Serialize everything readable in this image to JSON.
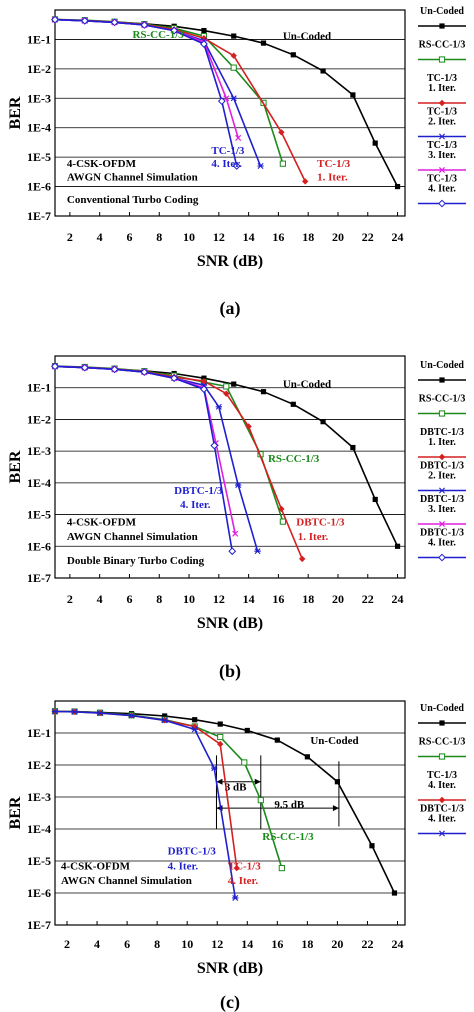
{
  "chart_data": [
    {
      "type": "line",
      "panel_label": "(a)",
      "xlabel": "SNR (dB)",
      "ylabel": "BER",
      "log_y": true,
      "xlim": [
        1,
        24.5
      ],
      "ylim_exp": [
        -7,
        0
      ],
      "x_ticks": [
        2,
        4,
        6,
        8,
        10,
        12,
        14,
        16,
        18,
        20,
        22,
        24
      ],
      "y_ticks": [
        "1E-1",
        "1E-2",
        "1E-3",
        "1E-4",
        "1E-5",
        "1E-6",
        "1E-7"
      ],
      "grid": "horizontal",
      "legend_position": "right",
      "annotations": [
        {
          "text": "Un-Coded",
          "x": 16.3,
          "y": 0.1,
          "color": "#000000"
        },
        {
          "text": "RS-CC-1/3",
          "x": 6.2,
          "y": 0.11,
          "color": "#1a8a1a"
        },
        {
          "text": "TC-1/3",
          "x": 11.5,
          "y": 1.3e-05,
          "color": "#1f1fd0"
        },
        {
          "text": "4. Iter.",
          "x": 11.5,
          "y": 4.6e-06,
          "color": "#1f1fd0"
        },
        {
          "text": "TC-1/3",
          "x": 18.6,
          "y": 4.6e-06,
          "color": "#d42020"
        },
        {
          "text": "1. Iter.",
          "x": 18.6,
          "y": 1.6e-06,
          "color": "#d42020"
        },
        {
          "text": "4-CSK-OFDM",
          "x": 1.8,
          "y": 4.6e-06,
          "color": "#000000"
        },
        {
          "text": "AWGN Channel Simulation",
          "x": 1.8,
          "y": 1.6e-06,
          "color": "#000000"
        },
        {
          "text": "Conventional Turbo Coding",
          "x": 1.8,
          "y": 2.8e-07,
          "color": "#000000"
        }
      ],
      "series": [
        {
          "name": "Un-Coded",
          "color": "#000000",
          "marker": "square-filled",
          "x": [
            1,
            3,
            5,
            7,
            9,
            11,
            13,
            15,
            17,
            19,
            21,
            22.5,
            24
          ],
          "y": [
            0.47,
            0.43,
            0.39,
            0.34,
            0.28,
            0.2,
            0.13,
            0.075,
            0.03,
            0.0085,
            0.0013,
            3e-05,
            1e-06
          ]
        },
        {
          "name": "RS-CC-1/3",
          "color": "#1a8a1a",
          "marker": "square-open",
          "x": [
            1,
            3,
            5,
            7,
            9,
            11,
            13,
            15,
            16.3
          ],
          "y": [
            0.48,
            0.45,
            0.4,
            0.33,
            0.24,
            0.13,
            0.011,
            0.0007,
            6e-06
          ]
        },
        {
          "name": "TC-1/3 1. Iter.",
          "color": "#d42020",
          "marker": "diamond-filled",
          "x": [
            1,
            3,
            5,
            7,
            9,
            11,
            13,
            16.2,
            17.8
          ],
          "y": [
            0.47,
            0.44,
            0.39,
            0.32,
            0.22,
            0.11,
            0.028,
            7e-05,
            1.5e-06
          ]
        },
        {
          "name": "TC-1/3 2. Iter.",
          "color": "#1f1fd0",
          "marker": "star",
          "x": [
            1,
            3,
            5,
            7,
            9,
            11,
            13,
            14.8
          ],
          "y": [
            0.47,
            0.43,
            0.38,
            0.31,
            0.2,
            0.09,
            0.001,
            5e-06
          ]
        },
        {
          "name": "TC-1/3 3. Iter.",
          "color": "#e020e0",
          "marker": "x",
          "x": [
            1,
            3,
            5,
            7,
            9,
            11,
            12.5,
            13.3
          ],
          "y": [
            0.47,
            0.43,
            0.38,
            0.31,
            0.2,
            0.08,
            0.001,
            4.5e-05
          ]
        },
        {
          "name": "TC-1/3 4. Iter.",
          "color": "#1f1fd0",
          "marker": "diamond-open",
          "x": [
            1,
            3,
            5,
            7,
            9,
            11,
            12.2,
            13.2
          ],
          "y": [
            0.47,
            0.43,
            0.38,
            0.31,
            0.2,
            0.07,
            0.0008,
            5e-06
          ]
        }
      ]
    },
    {
      "type": "line",
      "panel_label": "(b)",
      "xlabel": "SNR (dB)",
      "ylabel": "BER",
      "log_y": true,
      "xlim": [
        1,
        24.5
      ],
      "ylim_exp": [
        -7,
        0
      ],
      "x_ticks": [
        2,
        4,
        6,
        8,
        10,
        12,
        14,
        16,
        18,
        20,
        22,
        24
      ],
      "y_ticks": [
        "1E-1",
        "1E-2",
        "1E-3",
        "1E-4",
        "1E-5",
        "1E-6",
        "1E-7"
      ],
      "grid": "horizontal",
      "legend_position": "right",
      "annotations": [
        {
          "text": "Un-Coded",
          "x": 16.3,
          "y": 0.1,
          "color": "#000000"
        },
        {
          "text": "RS-CC-1/3",
          "x": 15.3,
          "y": 0.00045,
          "color": "#1a8a1a"
        },
        {
          "text": "DBTC-1/3",
          "x": 9,
          "y": 4.5e-05,
          "color": "#1f1fd0"
        },
        {
          "text": "4. Iter.",
          "x": 9.4,
          "y": 1.6e-05,
          "color": "#1f1fd0"
        },
        {
          "text": "DBTC-1/3",
          "x": 17.2,
          "y": 4.6e-06,
          "color": "#d42020"
        },
        {
          "text": "1. Iter.",
          "x": 17.3,
          "y": 1.6e-06,
          "color": "#d42020"
        },
        {
          "text": "4-CSK-OFDM",
          "x": 1.8,
          "y": 4.6e-06,
          "color": "#000000"
        },
        {
          "text": "AWGN Channel Simulation",
          "x": 1.8,
          "y": 1.6e-06,
          "color": "#000000"
        },
        {
          "text": "Double Binary Turbo Coding",
          "x": 1.8,
          "y": 2.8e-07,
          "color": "#000000"
        }
      ],
      "series": [
        {
          "name": "Un-Coded",
          "color": "#000000",
          "marker": "square-filled",
          "x": [
            1,
            3,
            5,
            7,
            9,
            11,
            13,
            15,
            17,
            19,
            21,
            22.5,
            24
          ],
          "y": [
            0.47,
            0.43,
            0.39,
            0.34,
            0.28,
            0.2,
            0.13,
            0.075,
            0.03,
            0.0085,
            0.0013,
            3e-05,
            1e-06
          ]
        },
        {
          "name": "RS-CC-1/3",
          "color": "#1a8a1a",
          "marker": "square-open",
          "x": [
            1,
            3,
            5,
            7,
            9,
            11,
            12.5,
            14.8,
            16.3
          ],
          "y": [
            0.48,
            0.45,
            0.4,
            0.33,
            0.24,
            0.15,
            0.11,
            0.0008,
            6e-06
          ]
        },
        {
          "name": "DBTC-1/3 1. Iter.",
          "color": "#d42020",
          "marker": "diamond-filled",
          "x": [
            1,
            3,
            5,
            7,
            9,
            11,
            12.5,
            14,
            16.2,
            17.6
          ],
          "y": [
            0.47,
            0.44,
            0.39,
            0.32,
            0.22,
            0.16,
            0.065,
            0.006,
            1.5e-05,
            4e-07
          ]
        },
        {
          "name": "DBTC-1/3 2. Iter.",
          "color": "#1f1fd0",
          "marker": "star",
          "x": [
            1,
            3,
            5,
            7,
            9,
            11,
            12,
            13.3,
            14.6
          ],
          "y": [
            0.47,
            0.43,
            0.38,
            0.31,
            0.2,
            0.12,
            0.025,
            8.5e-05,
            7e-07
          ]
        },
        {
          "name": "DBTC-1/3 3. Iter.",
          "color": "#e020e0",
          "marker": "x",
          "x": [
            1,
            3,
            5,
            7,
            9,
            11,
            11.8,
            13.1
          ],
          "y": [
            0.47,
            0.43,
            0.38,
            0.31,
            0.2,
            0.1,
            0.0018,
            2.5e-06
          ]
        },
        {
          "name": "DBTC-1/3 4. Iter.",
          "color": "#1f1fd0",
          "marker": "diamond-open",
          "x": [
            1,
            3,
            5,
            7,
            9,
            11,
            11.7,
            12.9
          ],
          "y": [
            0.47,
            0.43,
            0.38,
            0.31,
            0.2,
            0.09,
            0.0015,
            7e-07
          ]
        }
      ]
    },
    {
      "type": "line",
      "panel_label": "(c)",
      "xlabel": "SNR (dB)",
      "ylabel": "BER",
      "log_y": true,
      "xlim": [
        1.2,
        24.5
      ],
      "ylim_exp": [
        -7,
        0
      ],
      "x_ticks": [
        2,
        4,
        6,
        8,
        10,
        12,
        14,
        16,
        18,
        20,
        22,
        24
      ],
      "y_ticks": [
        "1E-1",
        "1E-2",
        "1E-3",
        "1E-4",
        "1E-5",
        "1E-6",
        "1E-7"
      ],
      "grid": "horizontal",
      "legend_position": "right",
      "annotations": [
        {
          "text": "Un-Coded",
          "x": 18.2,
          "y": 0.045,
          "color": "#000000"
        },
        {
          "text": "3 dB",
          "x": 12.5,
          "y": 0.0016,
          "color": "#000000"
        },
        {
          "text": "9.5 dB",
          "x": 15.8,
          "y": 0.00045,
          "color": "#000000"
        },
        {
          "text": "RS-CC-1/3",
          "x": 15,
          "y": 4.5e-05,
          "color": "#1a8a1a"
        },
        {
          "text": "DBTC-1/3",
          "x": 8.7,
          "y": 1.6e-05,
          "color": "#1f1fd0"
        },
        {
          "text": "4. Iter.",
          "x": 8.7,
          "y": 5.5e-06,
          "color": "#1f1fd0"
        },
        {
          "text": "TC-1/3",
          "x": 12.7,
          "y": 5.5e-06,
          "color": "#d42020"
        },
        {
          "text": "4. Iter.",
          "x": 12.7,
          "y": 1.9e-06,
          "color": "#d42020"
        },
        {
          "text": "4-CSK-OFDM",
          "x": 1.6,
          "y": 5.5e-06,
          "color": "#000000"
        },
        {
          "text": "AWGN Channel Simulation",
          "x": 1.6,
          "y": 1.9e-06,
          "color": "#000000"
        }
      ],
      "markers": [
        {
          "x1": 11.95,
          "x2": 14.9,
          "y": 0.003,
          "ticks_y": [
            0.0001,
            0.02
          ]
        },
        {
          "x1": 11.95,
          "x2": 20.1,
          "y": 0.00045,
          "ticks_y": [
            0.00012,
            0.013
          ]
        }
      ],
      "series": [
        {
          "name": "Un-Coded",
          "color": "#000000",
          "marker": "square-filled",
          "x": [
            1.2,
            2.5,
            4.2,
            6.3,
            8.5,
            10.5,
            12.2,
            14,
            16,
            18,
            20,
            22.3,
            23.8
          ],
          "y": [
            0.47,
            0.47,
            0.44,
            0.4,
            0.34,
            0.26,
            0.19,
            0.12,
            0.06,
            0.018,
            0.003,
            3e-05,
            1e-06
          ]
        },
        {
          "name": "RS-CC-1/3",
          "color": "#1a8a1a",
          "marker": "square-open",
          "x": [
            1.2,
            2.5,
            4.2,
            6.3,
            8.5,
            10.5,
            12.2,
            13.8,
            14.9,
            16.3
          ],
          "y": [
            0.48,
            0.47,
            0.43,
            0.36,
            0.26,
            0.16,
            0.075,
            0.012,
            0.0008,
            6e-06
          ]
        },
        {
          "name": "TC-1/3 4. Iter.",
          "color": "#d42020",
          "marker": "diamond-filled",
          "x": [
            1.2,
            2.5,
            4.2,
            6.3,
            8.5,
            10.5,
            12.2,
            13.3
          ],
          "y": [
            0.47,
            0.46,
            0.42,
            0.35,
            0.25,
            0.16,
            0.045,
            6e-06
          ]
        },
        {
          "name": "DBTC-1/3 4. Iter.",
          "color": "#1f1fd0",
          "marker": "star",
          "x": [
            1.2,
            2.5,
            4.2,
            6.3,
            8.5,
            10.5,
            11.8,
            13.2
          ],
          "y": [
            0.47,
            0.46,
            0.42,
            0.35,
            0.25,
            0.13,
            0.008,
            7e-07
          ]
        }
      ]
    }
  ]
}
